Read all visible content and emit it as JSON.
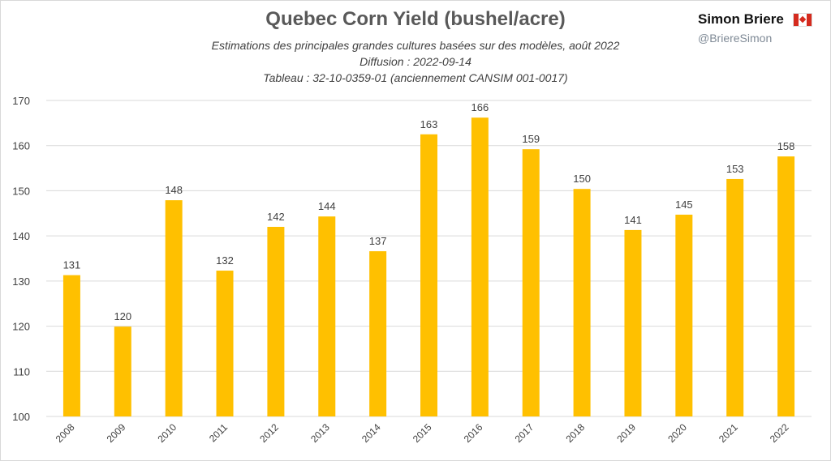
{
  "header": {
    "brand": "Simon Briere",
    "handle": "@BriereSimon"
  },
  "chart_data": {
    "type": "bar",
    "title": "Quebec Corn Yield (bushel/acre)",
    "subtitles": [
      "Estimations des principales grandes cultures basées sur des modèles, août 2022",
      "Diffusion : 2022-09-14",
      "Tableau : 32-10-0359-01 (anciennement CANSIM 001-0017)"
    ],
    "xlabel": "",
    "ylabel": "",
    "ylim": [
      100,
      170
    ],
    "yticks": [
      100,
      110,
      120,
      130,
      140,
      150,
      160,
      170
    ],
    "grid": true,
    "categories": [
      "2008",
      "2009",
      "2010",
      "2011",
      "2012",
      "2013",
      "2014",
      "2015",
      "2016",
      "2017",
      "2018",
      "2019",
      "2020",
      "2021",
      "2022"
    ],
    "values": [
      131.3,
      119.9,
      147.9,
      132.3,
      142.0,
      144.3,
      136.6,
      162.5,
      166.2,
      159.2,
      150.4,
      141.3,
      144.7,
      152.6,
      157.6
    ],
    "data_labels": [
      "131",
      "120",
      "148",
      "132",
      "142",
      "144",
      "137",
      "163",
      "166",
      "159",
      "150",
      "141",
      "145",
      "153",
      "158"
    ],
    "color": "#FFC000"
  }
}
